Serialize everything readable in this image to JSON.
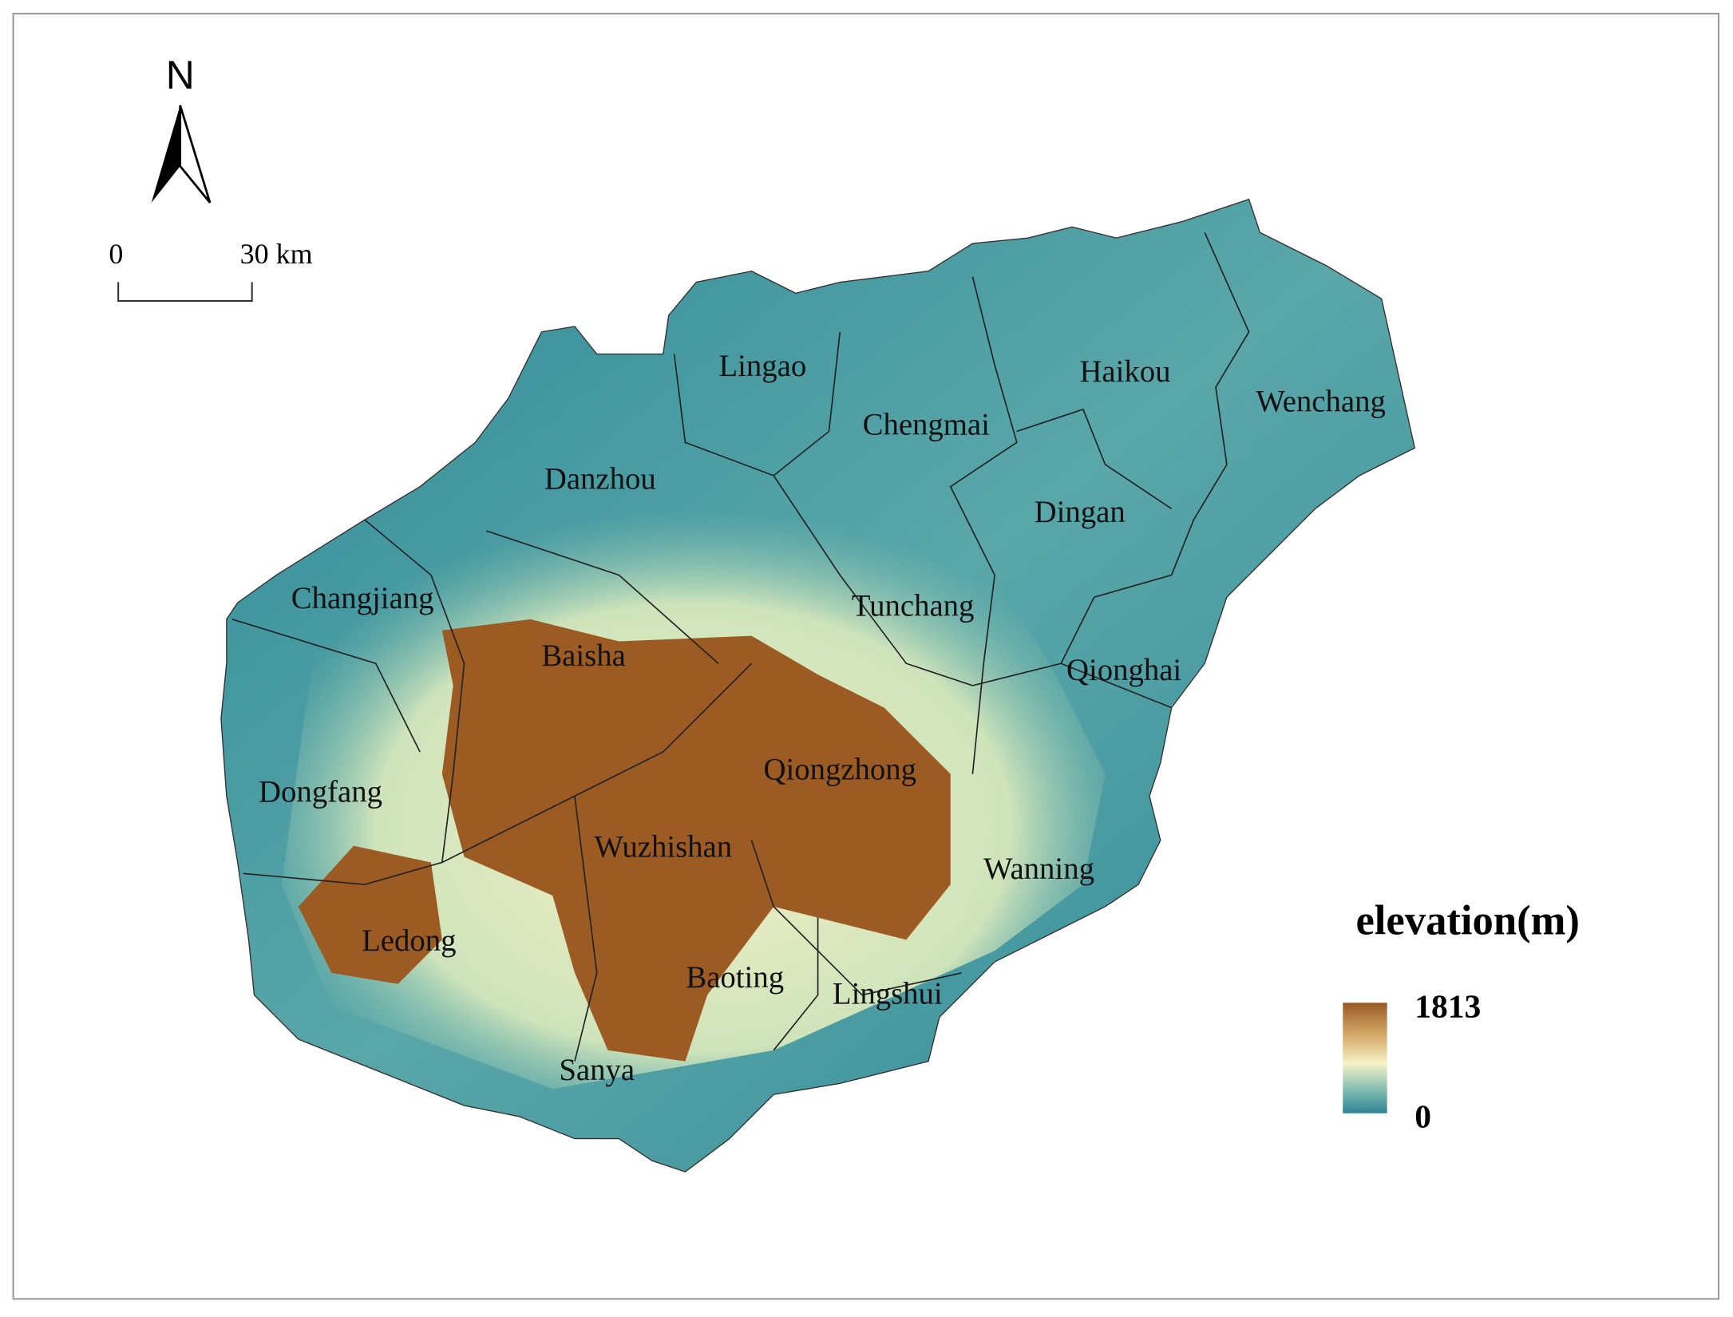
{
  "north_arrow": {
    "label": "N"
  },
  "scale_bar": {
    "start": "0",
    "end": "30 km"
  },
  "legend": {
    "title": "elevation(m)",
    "max": 1813,
    "min": 0
  },
  "regions": [
    "Lingao",
    "Haikou",
    "Wenchang",
    "Chengmai",
    "Danzhou",
    "Dingan",
    "Changjiang",
    "Tunchang",
    "Baisha",
    "Qionghai",
    "Qiongzhong",
    "Dongfang",
    "Wuzhishan",
    "Wanning",
    "Ledong",
    "Baoting",
    "Lingshui",
    "Sanya"
  ]
}
